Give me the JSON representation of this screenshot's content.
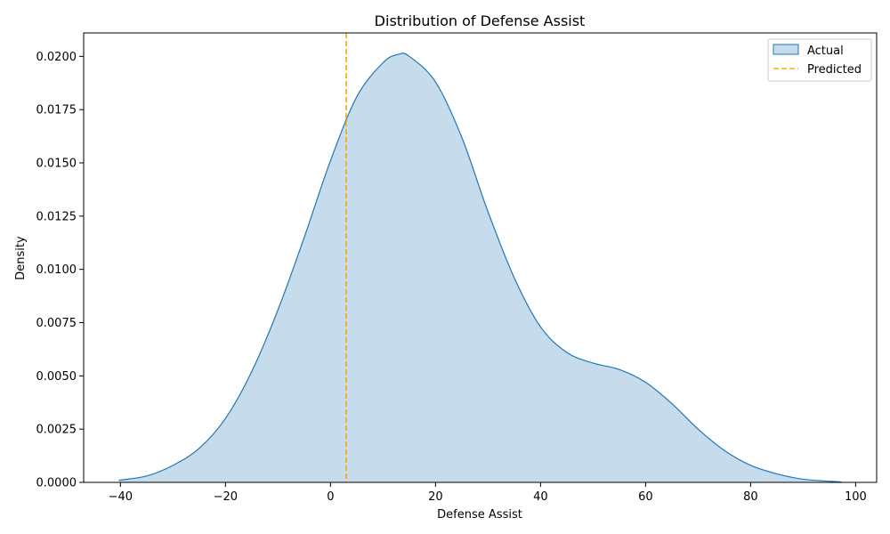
{
  "chart_data": {
    "type": "area",
    "title": "Distribution of Defense Assist",
    "xlabel": "Defense Assist",
    "ylabel": "Density",
    "xlim": [
      -47,
      104
    ],
    "ylim": [
      0,
      0.0211
    ],
    "xticks": [
      -40,
      -20,
      0,
      20,
      40,
      60,
      80,
      100
    ],
    "xtick_labels": [
      "−40",
      "−20",
      "0",
      "20",
      "40",
      "60",
      "80",
      "100"
    ],
    "yticks": [
      0,
      0.0025,
      0.005,
      0.0075,
      0.01,
      0.0125,
      0.015,
      0.0175,
      0.02
    ],
    "ytick_labels": [
      "0.0000",
      "0.0025",
      "0.0050",
      "0.0075",
      "0.0100",
      "0.0125",
      "0.0150",
      "0.0175",
      "0.0200"
    ],
    "grid": false,
    "legend_position": "top-right",
    "series": [
      {
        "name": "Actual",
        "kind": "kde-area",
        "line_color": "#1f77b4",
        "fill_color": "#c6dcec",
        "x": [
          -40.3,
          -35,
          -30,
          -25,
          -20,
          -15,
          -10,
          -5,
          0,
          5,
          10,
          13,
          15,
          20,
          25,
          30,
          35,
          40,
          45,
          50,
          55,
          60,
          65,
          70,
          75,
          80,
          85,
          90,
          97.3
        ],
        "y": [
          0.0001,
          0.0003,
          0.0008,
          0.0016,
          0.003,
          0.0052,
          0.0081,
          0.0115,
          0.0151,
          0.0181,
          0.0197,
          0.0201,
          0.02,
          0.0188,
          0.0162,
          0.0127,
          0.0096,
          0.0073,
          0.0061,
          0.0056,
          0.0053,
          0.0047,
          0.0037,
          0.0025,
          0.0015,
          0.0008,
          0.0004,
          0.00015,
          2e-05
        ]
      },
      {
        "name": "Predicted",
        "kind": "vline",
        "line_color": "#ffa500",
        "line_style": "dashed",
        "x": 3
      }
    ]
  }
}
